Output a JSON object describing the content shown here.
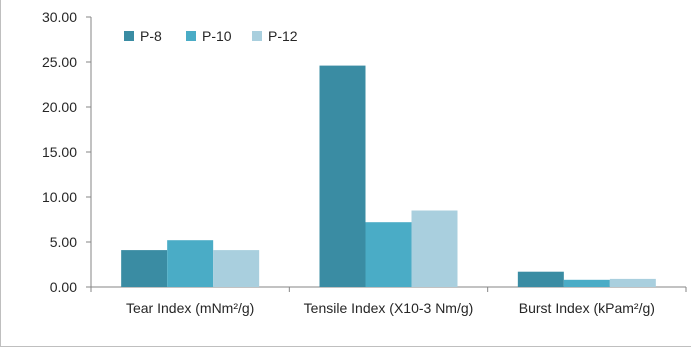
{
  "chart_data": {
    "type": "bar",
    "categories": [
      "Tear Index (mNm²/g)",
      "Tensile Index (X10-3 Nm/g)",
      "Burst Index (kPam²/g)"
    ],
    "series": [
      {
        "name": "P-8",
        "values": [
          4.1,
          24.6,
          1.7
        ],
        "color": "#3a8ca3"
      },
      {
        "name": "P-10",
        "values": [
          5.2,
          7.2,
          0.8
        ],
        "color": "#4aacc6"
      },
      {
        "name": "P-12",
        "values": [
          4.1,
          8.5,
          0.9
        ],
        "color": "#a9cfde"
      }
    ],
    "yticks": [
      "0.00",
      "5.00",
      "10.00",
      "15.00",
      "20.00",
      "25.00",
      "30.00"
    ],
    "ylim": [
      0,
      30
    ],
    "title": "",
    "xlabel": "",
    "ylabel": "",
    "grid": false,
    "legend_position": "top-left"
  }
}
